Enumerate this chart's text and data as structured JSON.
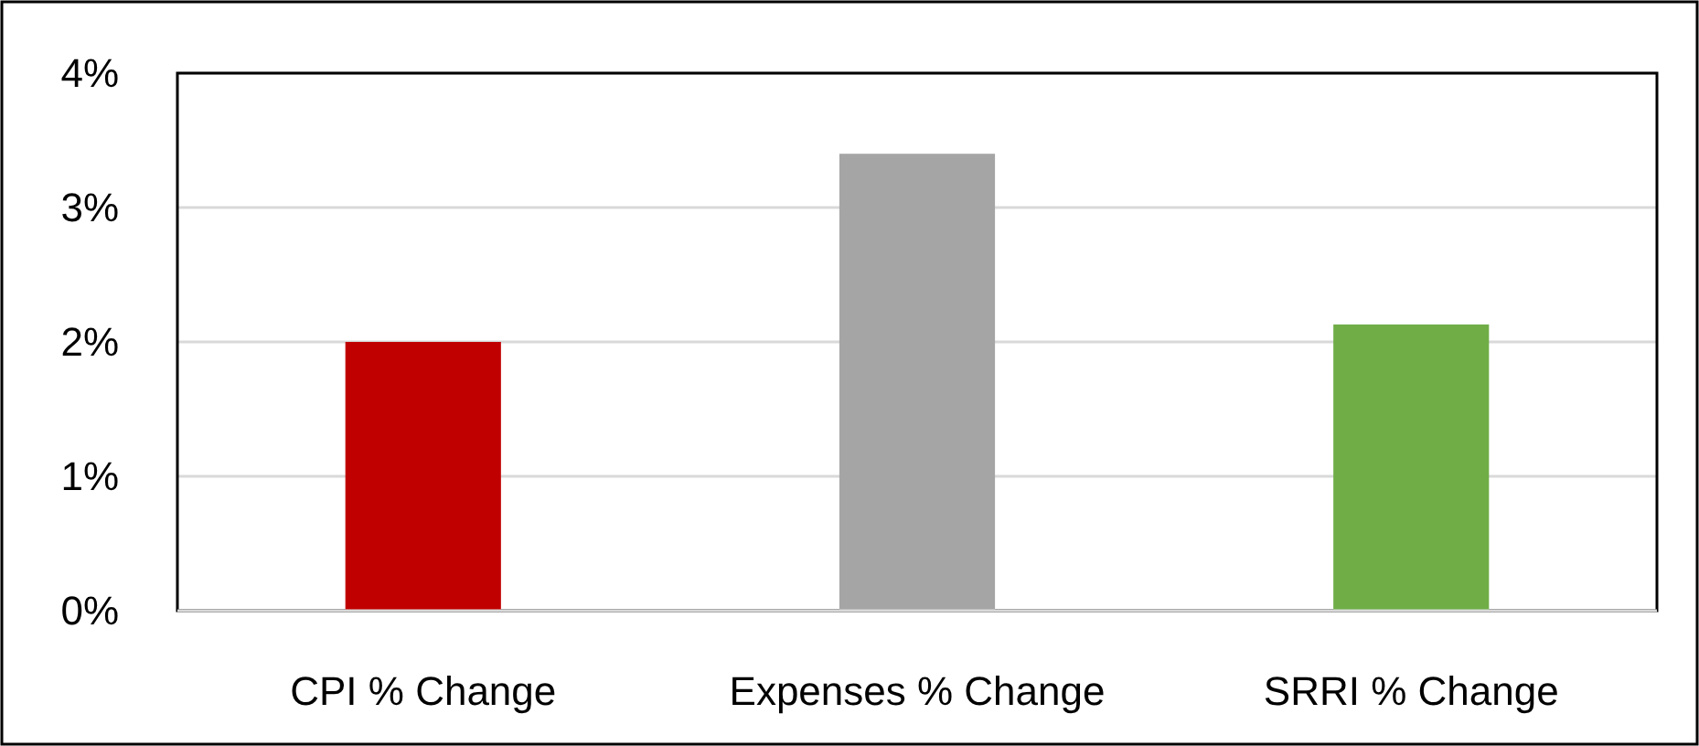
{
  "chart_data": {
    "type": "bar",
    "categories": [
      "CPI % Change",
      "Expenses % Change",
      "SRRI % Change"
    ],
    "values": [
      2.0,
      3.4,
      2.13
    ],
    "colors": [
      "#c00000",
      "#a5a5a5",
      "#70ad47"
    ],
    "ylim": [
      0,
      4
    ],
    "yticks": [
      {
        "value": 0,
        "label": "0%"
      },
      {
        "value": 1,
        "label": "1%"
      },
      {
        "value": 2,
        "label": "2%"
      },
      {
        "value": 3,
        "label": "3%"
      },
      {
        "value": 4,
        "label": "4%"
      }
    ],
    "grid": "y"
  }
}
